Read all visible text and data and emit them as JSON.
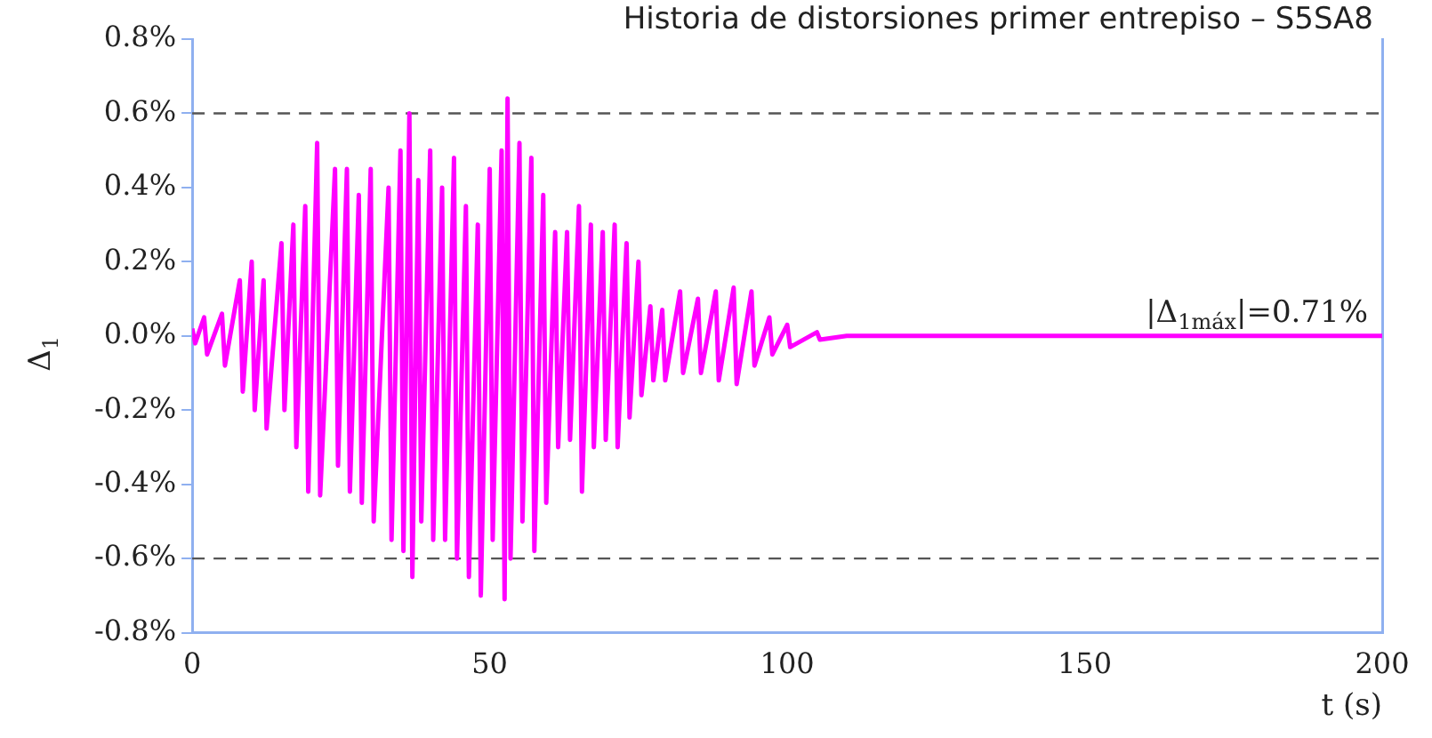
{
  "chart_data": {
    "type": "line",
    "title": "Historia de distorsiones primer entrepiso – S5SA8",
    "xlabel": "t (s)",
    "ylabel": "Δ$_{1}$",
    "annotations": [
      "|Δ$_{1máx}$|=0.71%"
    ],
    "xlim": [
      0,
      200
    ],
    "xticks": [
      0,
      50,
      100,
      150,
      200
    ],
    "ylim": [
      -0.8,
      0.8
    ],
    "yticks": [
      {
        "value": -0.8,
        "label": "-0.8%"
      },
      {
        "value": -0.6,
        "label": "-0.6%"
      },
      {
        "value": -0.4,
        "label": "-0.4%"
      },
      {
        "value": -0.2,
        "label": "-0.2%"
      },
      {
        "value": 0,
        "label": "0.0%"
      },
      {
        "value": 0.2,
        "label": "0.2%"
      },
      {
        "value": 0.4,
        "label": "0.4%"
      },
      {
        "value": 0.6,
        "label": "0.6%"
      },
      {
        "value": 0.8,
        "label": "0.8%"
      }
    ],
    "grid": false,
    "legend": false,
    "marker": "none",
    "line_style": "solid",
    "ref_lines": [
      {
        "axis": "y",
        "value": 0.6,
        "color": "#555555",
        "line_style": "dashed"
      },
      {
        "axis": "y",
        "value": -0.6,
        "color": "#555555",
        "line_style": "dashed"
      }
    ],
    "series": [
      {
        "color": "#ff00ff",
        "x": [
          0,
          0.5,
          2,
          2.5,
          5,
          5.5,
          8,
          8.5,
          10,
          10.5,
          12,
          12.5,
          15,
          15.5,
          17,
          17.5,
          19,
          19.5,
          21,
          21.5,
          24,
          24.5,
          26,
          26.5,
          28,
          28.5,
          30,
          30.5,
          33,
          33.5,
          35,
          35.5,
          36.5,
          37,
          38,
          38.5,
          40,
          40.5,
          42,
          42.5,
          44,
          44.5,
          46,
          46.5,
          48,
          48.5,
          50,
          50.5,
          52,
          52.5,
          53,
          53.5,
          55,
          55.5,
          57,
          57.5,
          59,
          59.5,
          61,
          61.5,
          63,
          63.5,
          65,
          65.5,
          67,
          67.5,
          69,
          69.5,
          71,
          71.5,
          73,
          73.5,
          75,
          75.5,
          77,
          77.5,
          79,
          79.5,
          82,
          82.5,
          85,
          85.5,
          88,
          88.5,
          91,
          91.5,
          94,
          94.5,
          97,
          97.5,
          100,
          100.5,
          105,
          105.5,
          110,
          200
        ],
        "values": [
          0.02,
          -0.02,
          0.05,
          -0.05,
          0.06,
          -0.08,
          0.15,
          -0.15,
          0.2,
          -0.2,
          0.15,
          -0.25,
          0.25,
          -0.2,
          0.3,
          -0.3,
          0.35,
          -0.42,
          0.52,
          -0.43,
          0.45,
          -0.35,
          0.45,
          -0.42,
          0.38,
          -0.45,
          0.45,
          -0.5,
          0.4,
          -0.55,
          0.5,
          -0.58,
          0.6,
          -0.65,
          0.42,
          -0.5,
          0.5,
          -0.55,
          0.4,
          -0.55,
          0.48,
          -0.6,
          0.35,
          -0.65,
          0.3,
          -0.7,
          0.45,
          -0.55,
          0.5,
          -0.71,
          0.64,
          -0.6,
          0.52,
          -0.5,
          0.48,
          -0.58,
          0.38,
          -0.45,
          0.28,
          -0.3,
          0.28,
          -0.28,
          0.35,
          -0.42,
          0.3,
          -0.3,
          0.28,
          -0.28,
          0.3,
          -0.3,
          0.25,
          -0.22,
          0.2,
          -0.16,
          0.08,
          -0.12,
          0.07,
          -0.12,
          0.12,
          -0.1,
          0.1,
          -0.1,
          0.12,
          -0.12,
          0.13,
          -0.13,
          0.12,
          -0.08,
          0.05,
          -0.05,
          0.03,
          -0.03,
          0.01,
          -0.01,
          0,
          0
        ]
      }
    ]
  }
}
